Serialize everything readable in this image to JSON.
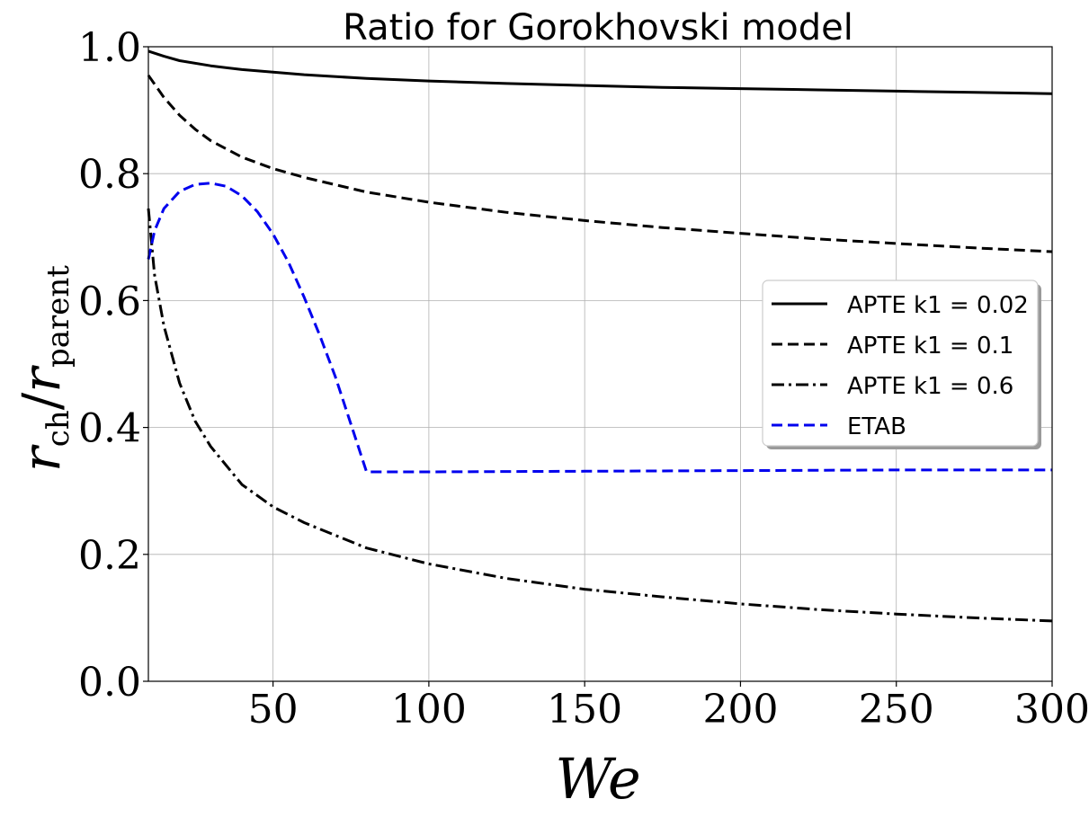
{
  "chart_data": {
    "type": "line",
    "title": "Ratio for Gorokhovski model",
    "xlabel": "We",
    "ylabel_main": "r",
    "ylabel_sub1": "ch",
    "ylabel_slash": "/",
    "ylabel_sub2": "parent",
    "xlim": [
      10,
      300
    ],
    "ylim": [
      0.0,
      1.0
    ],
    "xticks": [
      50,
      100,
      150,
      200,
      250,
      300
    ],
    "xtick_labels": [
      "50",
      "100",
      "150",
      "200",
      "250",
      "300"
    ],
    "yticks": [
      0.0,
      0.2,
      0.4,
      0.6,
      0.8,
      1.0
    ],
    "ytick_labels": [
      "0.0",
      "0.2",
      "0.4",
      "0.6",
      "0.8",
      "1.0"
    ],
    "grid": true,
    "legend_position": "center-right",
    "series": [
      {
        "name": "APTE k1 = 0.02",
        "style": "solid",
        "color": "#000000",
        "x": [
          10,
          15,
          20,
          30,
          40,
          50,
          60,
          80,
          100,
          125,
          150,
          175,
          200,
          225,
          250,
          275,
          300
        ],
        "y": [
          0.993,
          0.985,
          0.978,
          0.97,
          0.964,
          0.96,
          0.956,
          0.95,
          0.946,
          0.942,
          0.939,
          0.936,
          0.934,
          0.932,
          0.93,
          0.928,
          0.926
        ]
      },
      {
        "name": "APTE k1 = 0.1",
        "style": "dashed",
        "color": "#000000",
        "x": [
          10,
          15,
          20,
          25,
          30,
          40,
          50,
          60,
          80,
          100,
          125,
          150,
          175,
          200,
          225,
          250,
          275,
          300
        ],
        "y": [
          0.955,
          0.92,
          0.892,
          0.87,
          0.852,
          0.826,
          0.808,
          0.794,
          0.771,
          0.755,
          0.739,
          0.726,
          0.715,
          0.706,
          0.697,
          0.69,
          0.683,
          0.677
        ]
      },
      {
        "name": "APTE k1 = 0.6",
        "style": "dashdot",
        "color": "#000000",
        "x": [
          10,
          12,
          15,
          20,
          25,
          30,
          40,
          50,
          60,
          70,
          80,
          100,
          125,
          150,
          175,
          200,
          225,
          250,
          275,
          300
        ],
        "y": [
          0.745,
          0.64,
          0.56,
          0.47,
          0.41,
          0.37,
          0.31,
          0.275,
          0.25,
          0.23,
          0.21,
          0.185,
          0.162,
          0.145,
          0.133,
          0.122,
          0.113,
          0.106,
          0.1,
          0.095
        ]
      },
      {
        "name": "ETAB",
        "style": "dashed",
        "color": "#0000ee",
        "x": [
          10,
          12,
          15,
          20,
          25,
          30,
          35,
          40,
          45,
          50,
          55,
          60,
          65,
          70,
          75,
          80,
          100,
          150,
          200,
          250,
          300
        ],
        "y": [
          0.665,
          0.71,
          0.745,
          0.772,
          0.783,
          0.785,
          0.78,
          0.765,
          0.74,
          0.705,
          0.66,
          0.605,
          0.545,
          0.48,
          0.405,
          0.33,
          0.33,
          0.331,
          0.332,
          0.333,
          0.333
        ]
      }
    ]
  }
}
